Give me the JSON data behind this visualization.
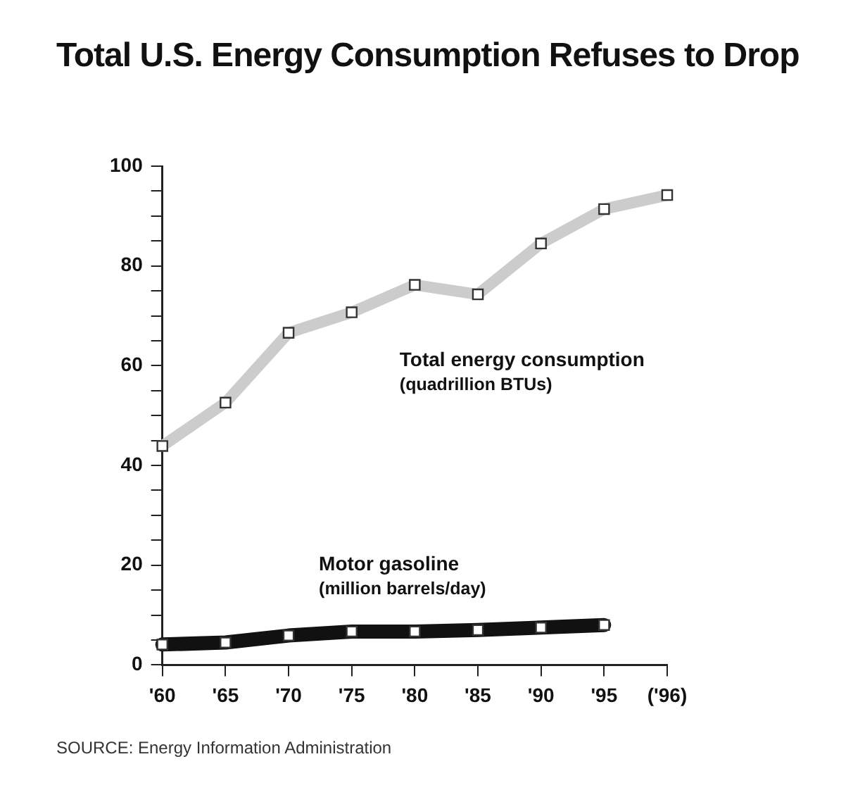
{
  "chart_data": {
    "type": "line",
    "title": "Total U.S. Energy Consumption Refuses to Drop",
    "categories": [
      "'60",
      "'65",
      "'70",
      "'75",
      "'80",
      "'85",
      "'90",
      "'95",
      "('96)"
    ],
    "series": [
      {
        "name": "Total energy consumption (quadrillion BTUs)",
        "color": "#cccccc",
        "values": [
          43.9,
          52.6,
          66.6,
          70.7,
          76.2,
          74.3,
          84.5,
          91.4,
          94.2
        ]
      },
      {
        "name": "Motor gasoline (million barrels/day)",
        "color": "#111111",
        "values": [
          4.1,
          4.5,
          5.9,
          6.7,
          6.7,
          7.0,
          7.5,
          8.0,
          null
        ]
      }
    ],
    "ylim": [
      0,
      100
    ],
    "yticks": [
      0,
      {
        "value": 5,
        "label": null
      },
      {
        "value": 10,
        "label": null
      },
      {
        "value": 15,
        "label": null
      },
      20,
      {
        "value": 25,
        "label": null
      },
      {
        "value": 30,
        "label": null
      },
      {
        "value": 35,
        "label": null
      },
      40,
      {
        "value": 45,
        "label": null
      },
      {
        "value": 50,
        "label": null
      },
      {
        "value": 55,
        "label": null
      },
      60,
      {
        "value": 65,
        "label": null
      },
      {
        "value": 70,
        "label": null
      },
      {
        "value": 75,
        "label": null
      },
      80,
      {
        "value": 85,
        "label": null
      },
      {
        "value": 90,
        "label": null
      },
      {
        "value": 95,
        "label": null
      },
      100
    ],
    "grid": false,
    "legend": false,
    "marker": "square",
    "line_style": "solid",
    "annotations": [
      "SOURCE: Energy Information Administration"
    ]
  }
}
